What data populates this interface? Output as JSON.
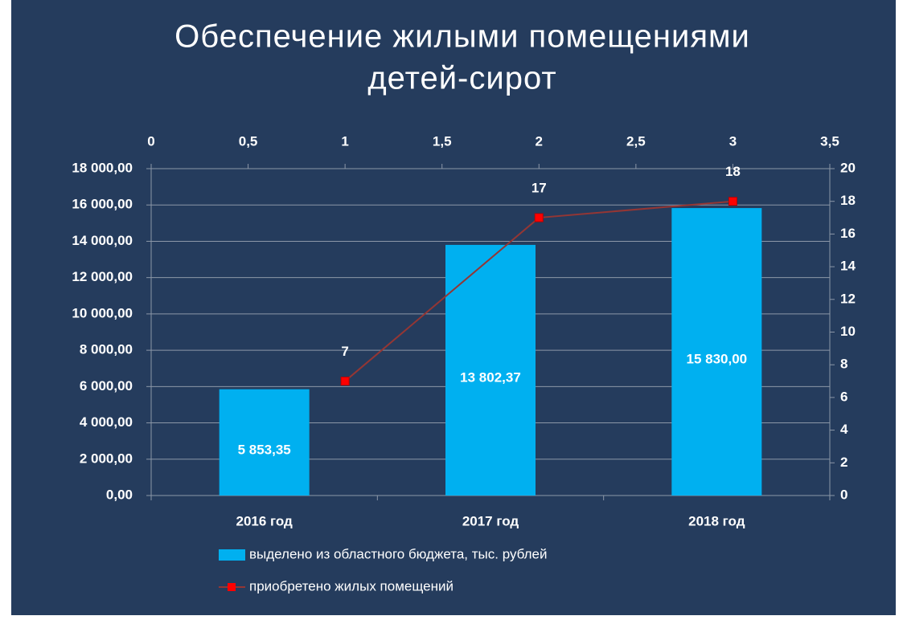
{
  "chart_data": {
    "type": "bar",
    "title": [
      "Обеспечение жилыми помещениями",
      "детей-сирот"
    ],
    "categories": [
      "2016 год",
      "2017 год",
      "2018 год"
    ],
    "series": [
      {
        "name": "выделено из областного бюджета, тыс. рублей",
        "type": "bar",
        "color": "#00b0f0",
        "values": [
          5853.35,
          13802.37,
          15830
        ],
        "value_labels": [
          "5 853,35",
          "13 802,37",
          "15 830,00"
        ]
      },
      {
        "name": "приобретено жилых помещений",
        "type": "line",
        "axis": "y2",
        "color": "#943634",
        "marker_color": "#ff0000",
        "x": [
          1,
          2,
          3
        ],
        "values": [
          7,
          17,
          18
        ]
      }
    ],
    "ylim": [
      0,
      18000
    ],
    "yticks": [
      {
        "value": 0,
        "label": "0,00"
      },
      {
        "value": 2000,
        "label": "2 000,00"
      },
      {
        "value": 4000,
        "label": "4 000,00"
      },
      {
        "value": 6000,
        "label": "6 000,00"
      },
      {
        "value": 8000,
        "label": "8 000,00"
      },
      {
        "value": 10000,
        "label": "10 000,00"
      },
      {
        "value": 12000,
        "label": "12 000,00"
      },
      {
        "value": 14000,
        "label": "14 000,00"
      },
      {
        "value": 16000,
        "label": "16 000,00"
      },
      {
        "value": 18000,
        "label": "18 000,00"
      }
    ],
    "y2lim": [
      0,
      20
    ],
    "y2ticks": [
      0,
      2,
      4,
      6,
      8,
      10,
      12,
      14,
      16,
      18,
      20
    ],
    "xlim": [
      0,
      3.5
    ],
    "xticks": [
      0,
      {
        "value": 0.5,
        "label": "0,5"
      },
      1,
      {
        "value": 1.5,
        "label": "1,5"
      },
      2,
      {
        "value": 2.5,
        "label": "2,5"
      },
      3,
      {
        "value": 3.5,
        "label": "3,5"
      }
    ],
    "grid": true,
    "legend": "bottom"
  }
}
